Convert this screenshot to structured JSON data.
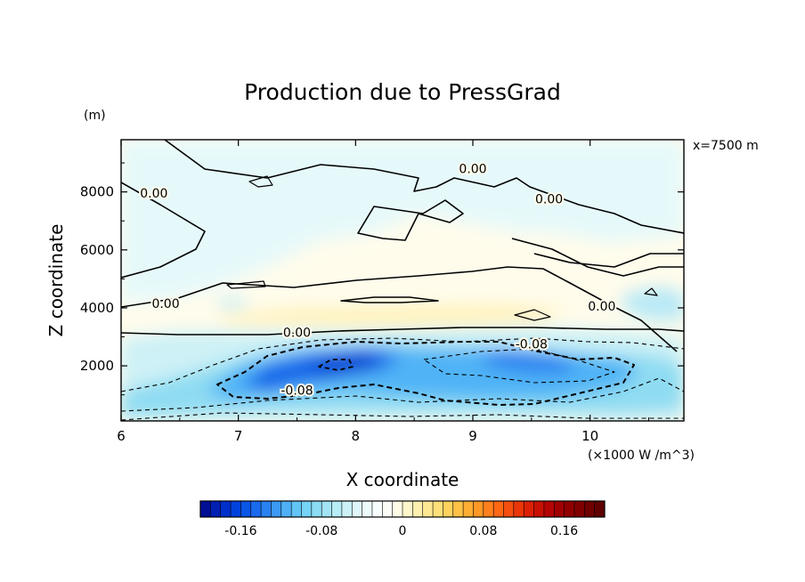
{
  "chart_data": {
    "type": "heatmap",
    "title": "Production due to PressGrad",
    "xlabel": "X coordinate",
    "ylabel": "Z coordinate",
    "y_units": "(m)",
    "annotation": "x=7500 m",
    "scale_note": "(×1000 W /m^3)",
    "xlim": [
      6,
      10.8
    ],
    "ylim": [
      100,
      9800
    ],
    "x_ticks": [
      6,
      7,
      8,
      9,
      10
    ],
    "y_ticks": [
      2000,
      4000,
      6000,
      8000
    ],
    "contour_labels": [
      {
        "text": "0.00",
        "x": 9.0,
        "y": 8650
      },
      {
        "text": "0.00",
        "x": 9.65,
        "y": 7600
      },
      {
        "text": "0.00",
        "x": 6.28,
        "y": 7800
      },
      {
        "text": "0.00",
        "x": 6.38,
        "y": 4000
      },
      {
        "text": "0.00",
        "x": 10.1,
        "y": 3900
      },
      {
        "text": "0.00",
        "x": 7.5,
        "y": 3000
      },
      {
        "text": "-0.08",
        "x": 9.5,
        "y": 2600
      },
      {
        "text": "-0.08",
        "x": 7.5,
        "y": 1000
      }
    ],
    "colorbar": {
      "min": -0.2,
      "max": 0.2,
      "step": 0.01,
      "tick_labels": [
        "-0.16",
        "-0.08",
        "0",
        "0.08",
        "0.16"
      ],
      "tick_values": [
        -0.16,
        -0.08,
        0,
        0.08,
        0.16
      ],
      "colors": [
        "#000f94",
        "#0020b4",
        "#0030cc",
        "#0042dc",
        "#0a56e6",
        "#1a6aee",
        "#2a82f2",
        "#3c9af4",
        "#4fb0f6",
        "#62c4f7",
        "#76d3f5",
        "#8cdcf3",
        "#a2e4f4",
        "#b8ecf6",
        "#ccf2f8",
        "#dff7fa",
        "#eefbfc",
        "#f8fdfd",
        "#fdfdf8",
        "#fffbe6",
        "#fff6cc",
        "#fff0b0",
        "#ffe894",
        "#ffdf78",
        "#ffd25e",
        "#ffc246",
        "#ffae34",
        "#ff9826",
        "#ff801c",
        "#ff6814",
        "#f64e0e",
        "#ea3608",
        "#dc2006",
        "#c81004",
        "#b40404",
        "#a00000",
        "#900000",
        "#800000",
        "#700000",
        "#600000"
      ]
    }
  }
}
